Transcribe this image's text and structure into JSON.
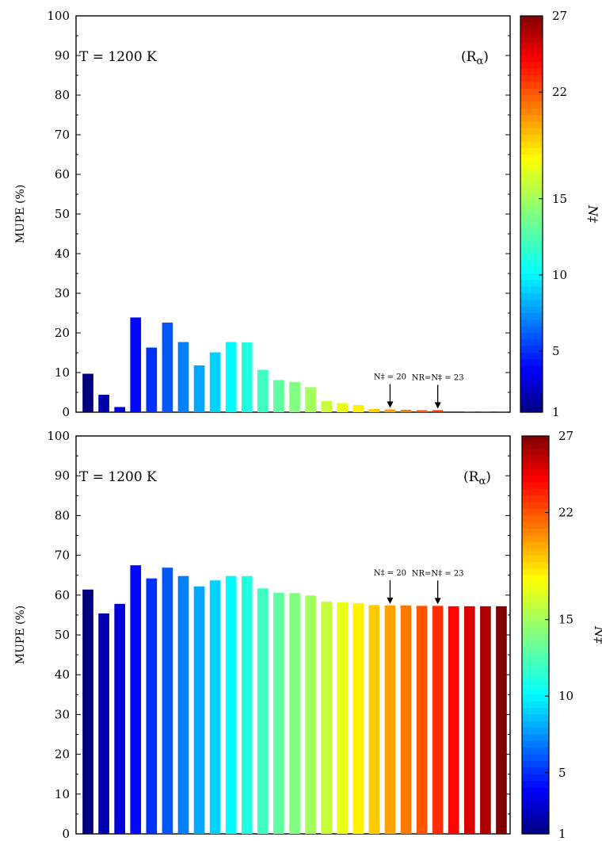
{
  "chart_data": [
    {
      "type": "bar",
      "ylabel": "MUPE (%)",
      "ylim": [
        0,
        100
      ],
      "yticks": [
        0,
        10,
        20,
        30,
        40,
        50,
        60,
        70,
        80,
        90,
        100
      ],
      "temperature_label": "T = 1200 K",
      "panel_tag": {
        "main": "(R",
        "sub": "α",
        "close": ")"
      },
      "colorbar": {
        "title": "N‡",
        "ticks": [
          1,
          5,
          10,
          15,
          22,
          27
        ],
        "range": [
          1,
          27
        ]
      },
      "n_values": [
        1,
        2,
        3,
        4,
        5,
        6,
        7,
        8,
        9,
        10,
        11,
        12,
        13,
        14,
        15,
        16,
        17,
        18,
        19,
        20,
        21,
        22,
        23,
        24,
        25,
        26,
        27
      ],
      "values": [
        9.7,
        4.4,
        1.3,
        23.9,
        16.3,
        22.6,
        17.7,
        11.8,
        15.1,
        17.7,
        17.6,
        10.7,
        8.1,
        7.6,
        6.3,
        2.8,
        2.3,
        1.8,
        0.8,
        0.7,
        0.6,
        0.5,
        0.5,
        0.2,
        0.1,
        0.1,
        0.1
      ],
      "annotations": [
        {
          "at_n": 20,
          "label": "N‡ = 20"
        },
        {
          "at_n": 23,
          "label": "NR=N‡ = 23"
        }
      ]
    },
    {
      "type": "bar",
      "ylabel": "MUPE (%)",
      "ylim": [
        0,
        100
      ],
      "yticks": [
        0,
        10,
        20,
        30,
        40,
        50,
        60,
        70,
        80,
        90,
        100
      ],
      "temperature_label": "T = 1200 K",
      "panel_tag": {
        "main": "(R",
        "sub": "α",
        "close": ")"
      },
      "colorbar": {
        "title": "N‡",
        "ticks": [
          1,
          5,
          10,
          15,
          22,
          27
        ],
        "range": [
          1,
          27
        ]
      },
      "n_values": [
        1,
        2,
        3,
        4,
        5,
        6,
        7,
        8,
        9,
        10,
        11,
        12,
        13,
        14,
        15,
        16,
        17,
        18,
        19,
        20,
        21,
        22,
        23,
        24,
        25,
        26,
        27
      ],
      "values": [
        61.4,
        55.4,
        57.8,
        67.5,
        64.2,
        66.9,
        64.8,
        62.2,
        63.7,
        64.8,
        64.8,
        61.7,
        60.6,
        60.5,
        59.9,
        58.4,
        58.2,
        58.0,
        57.5,
        57.4,
        57.4,
        57.3,
        57.3,
        57.2,
        57.2,
        57.2,
        57.2
      ],
      "annotations": [
        {
          "at_n": 20,
          "label": "N‡ = 20"
        },
        {
          "at_n": 23,
          "label": "NR=N‡ = 23"
        }
      ]
    }
  ]
}
